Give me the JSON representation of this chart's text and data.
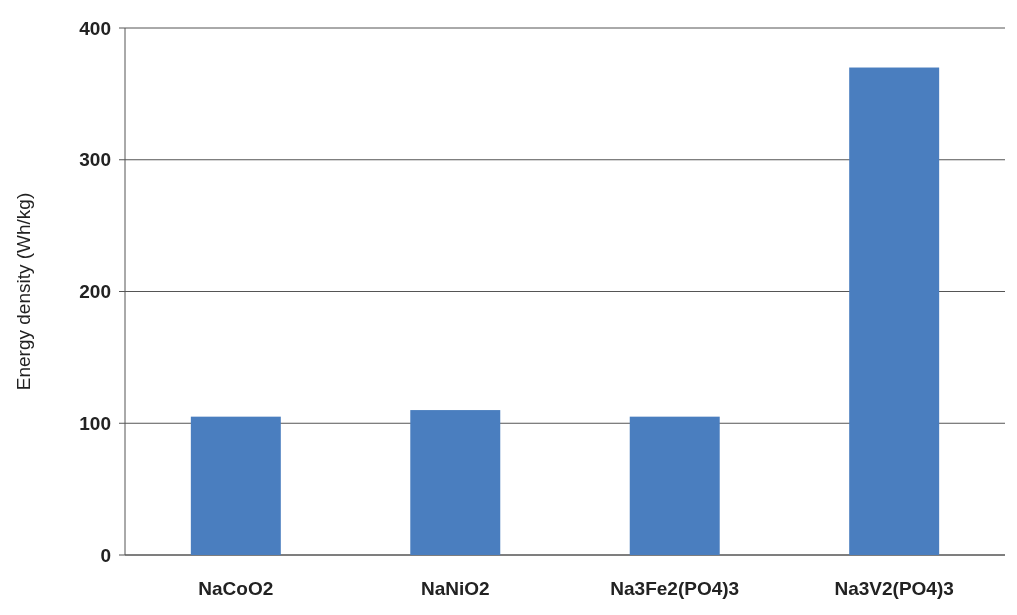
{
  "chart_data": {
    "type": "bar",
    "ylabel": "Energy density (Wh/kg)",
    "categories": [
      "NaCoO2",
      "NaNiO2",
      "Na3Fe2(PO4)3",
      "Na3V2(PO4)3"
    ],
    "values": [
      105,
      110,
      105,
      370
    ],
    "color": "#4a7ebf",
    "ylim": [
      0,
      400
    ],
    "yticks": [
      0,
      100,
      200,
      300,
      400
    ],
    "grid": "y"
  }
}
